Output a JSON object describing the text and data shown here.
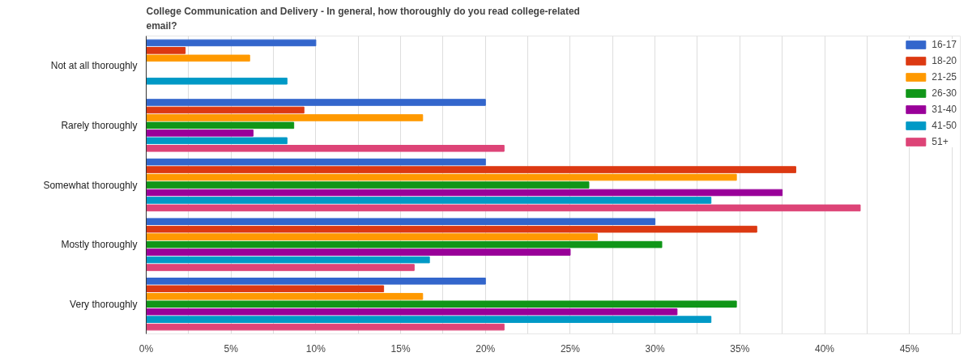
{
  "chart_data": {
    "type": "bar",
    "orientation": "horizontal",
    "title": "College Communication and Delivery - In general, how thoroughly do you read college-related\nemail?",
    "categories": [
      "Not at all thoroughly",
      "Rarely thoroughly",
      "Somewhat thoroughly",
      "Mostly thoroughly",
      "Very thoroughly"
    ],
    "series": [
      {
        "name": "16-17",
        "color": "#3366cc",
        "values": [
          10,
          20,
          20,
          30,
          20
        ]
      },
      {
        "name": "18-20",
        "color": "#dc3912",
        "values": [
          2.3,
          9.3,
          38.3,
          36,
          14
        ]
      },
      {
        "name": "21-25",
        "color": "#ff9900",
        "values": [
          6.1,
          16.3,
          34.8,
          26.6,
          16.3
        ]
      },
      {
        "name": "26-30",
        "color": "#109618",
        "values": [
          0,
          8.7,
          26.1,
          30.4,
          34.8
        ]
      },
      {
        "name": "31-40",
        "color": "#990099",
        "values": [
          0,
          6.3,
          37.5,
          25,
          31.3
        ]
      },
      {
        "name": "41-50",
        "color": "#0099c6",
        "values": [
          8.3,
          8.3,
          33.3,
          16.7,
          33.3
        ]
      },
      {
        "name": "51+",
        "color": "#dd4477",
        "values": [
          0,
          21.1,
          42.1,
          15.8,
          21.1
        ]
      }
    ],
    "xlim": [
      0,
      48
    ],
    "xticks": [
      {
        "value": 0,
        "label": "0%"
      },
      {
        "value": 2.5,
        "label": null
      },
      {
        "value": 5,
        "label": "5%"
      },
      {
        "value": 7.5,
        "label": null
      },
      {
        "value": 10,
        "label": "10%"
      },
      {
        "value": 12.5,
        "label": null
      },
      {
        "value": 15,
        "label": "15%"
      },
      {
        "value": 17.5,
        "label": null
      },
      {
        "value": 20,
        "label": "20%"
      },
      {
        "value": 22.5,
        "label": null
      },
      {
        "value": 25,
        "label": "25%"
      },
      {
        "value": 27.5,
        "label": null
      },
      {
        "value": 30,
        "label": "30%"
      },
      {
        "value": 32.5,
        "label": null
      },
      {
        "value": 35,
        "label": "35%"
      },
      {
        "value": 37.5,
        "label": null
      },
      {
        "value": 40,
        "label": "40%"
      },
      {
        "value": 42.5,
        "label": null
      },
      {
        "value": 45,
        "label": "45%"
      },
      {
        "value": 47.5,
        "label": null
      }
    ],
    "grid": "x",
    "legend": "top right"
  }
}
